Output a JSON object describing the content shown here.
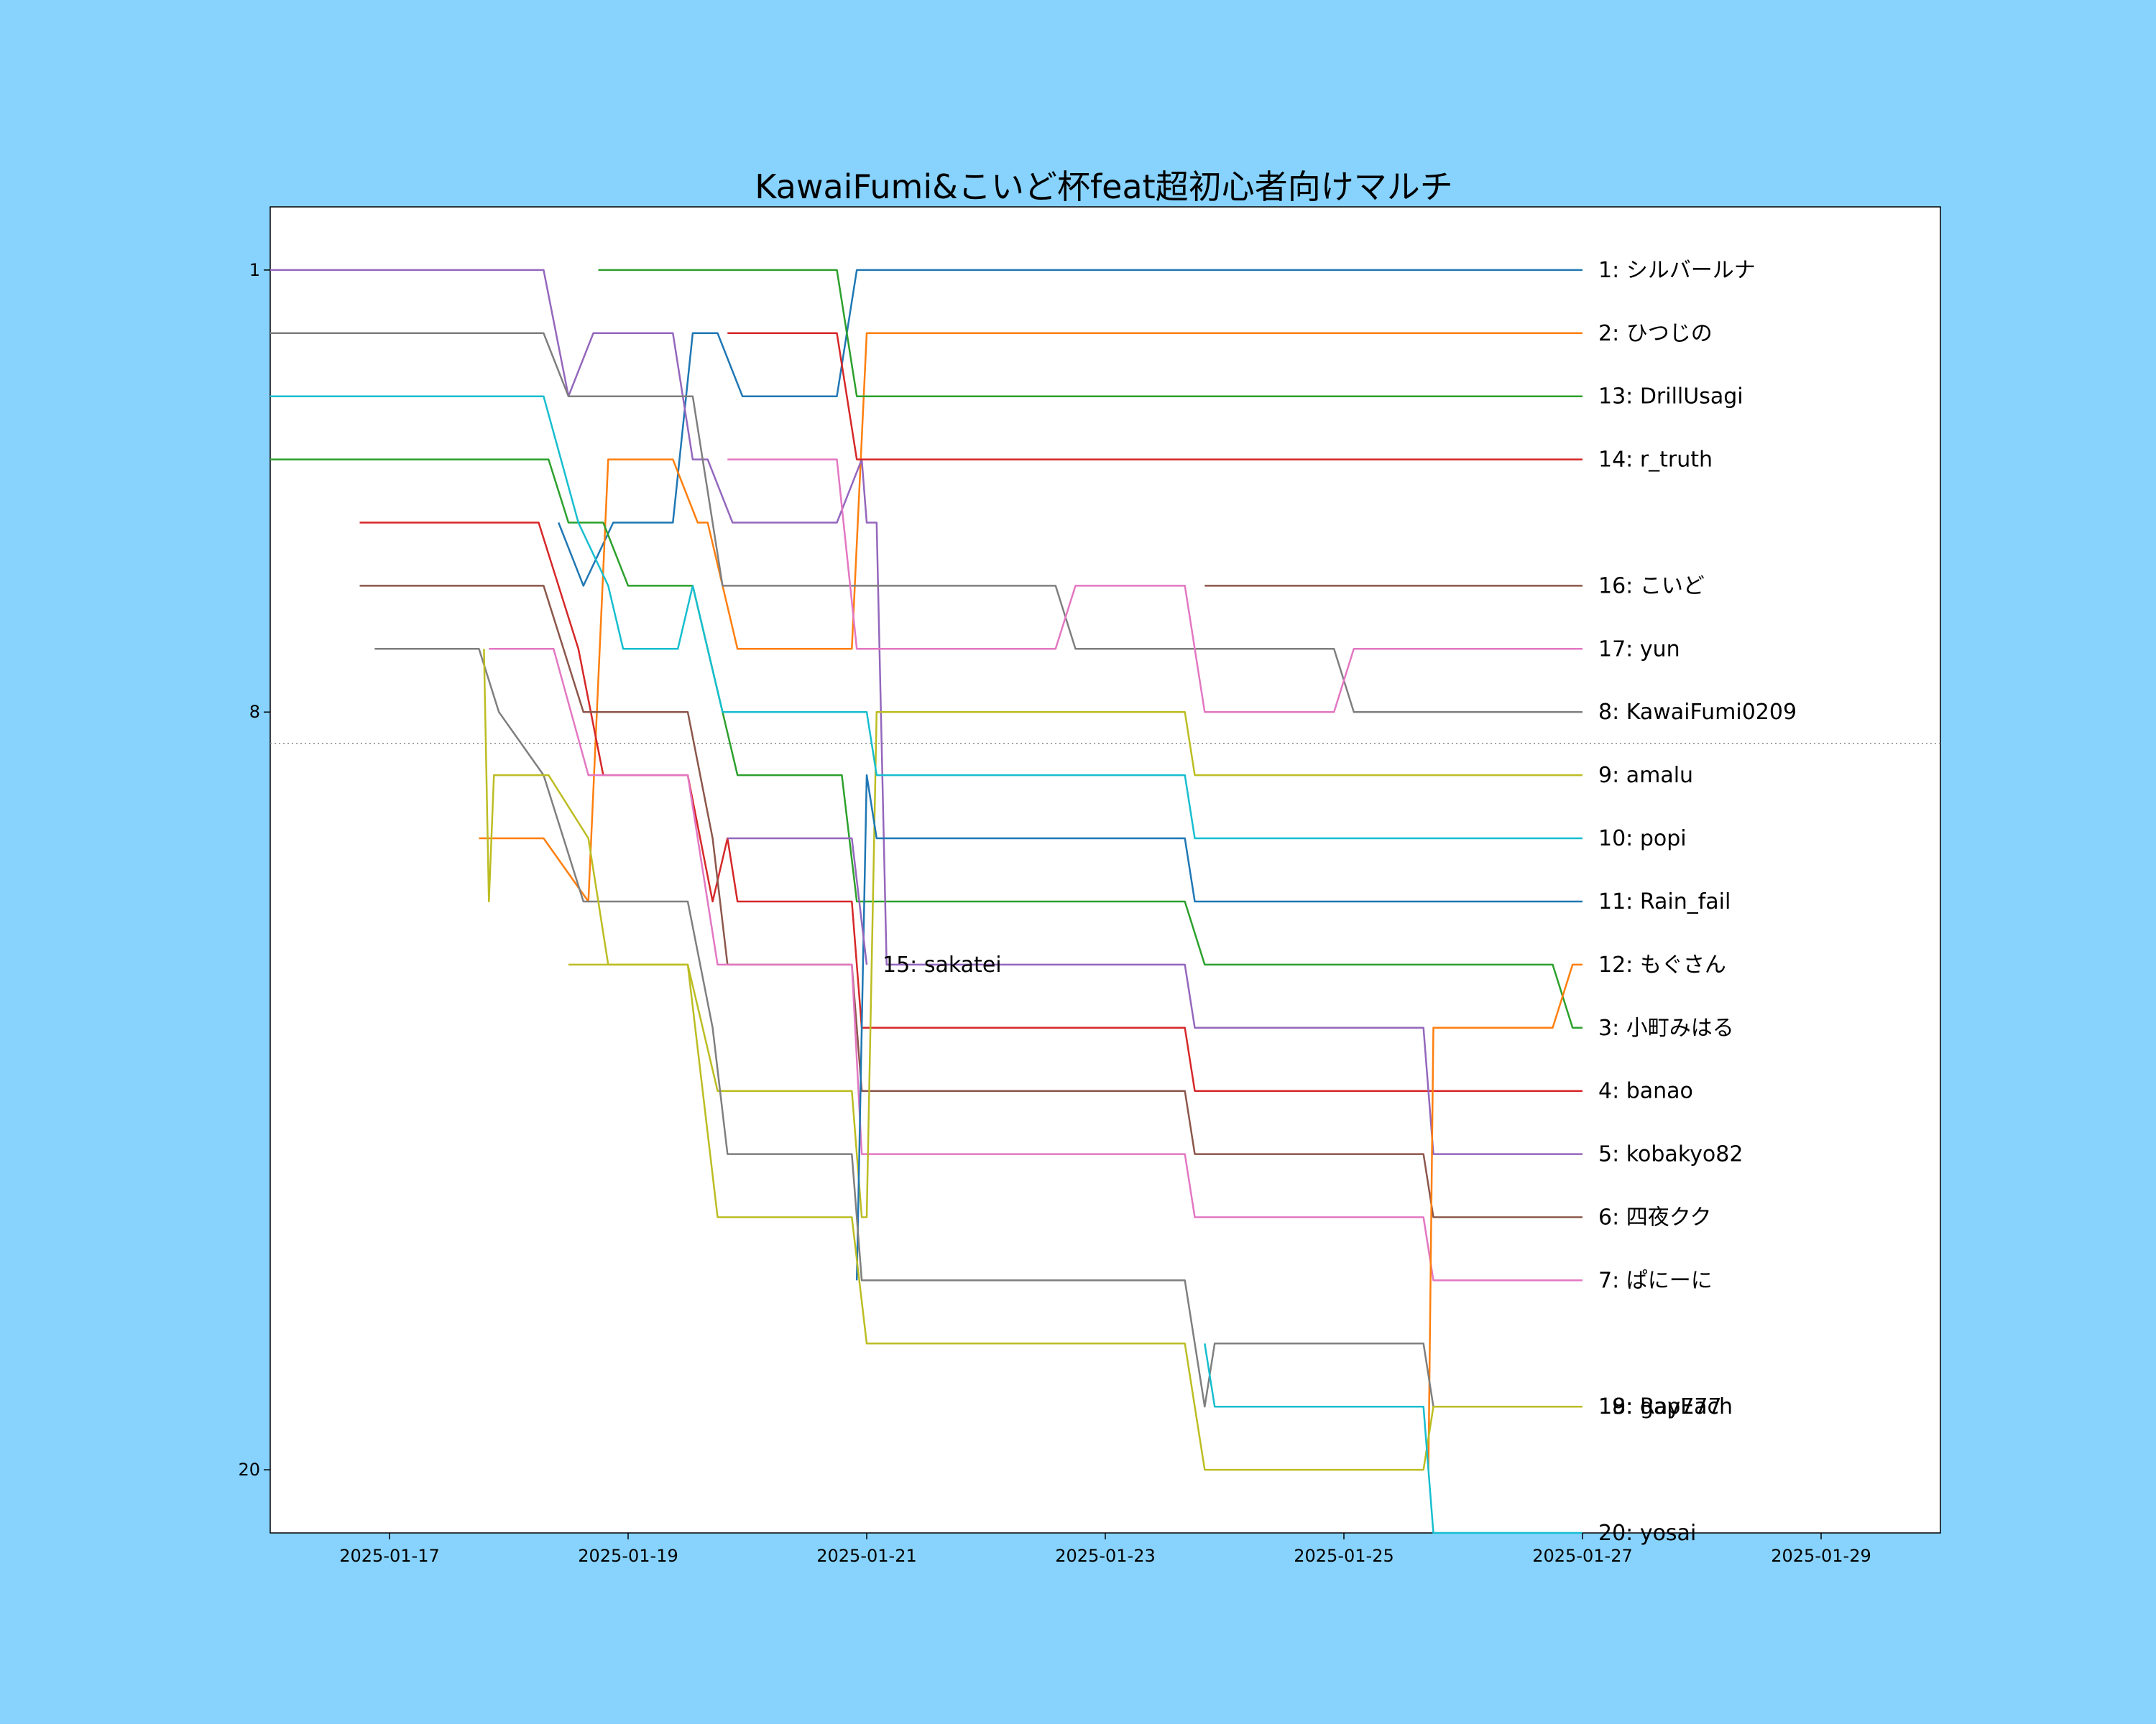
{
  "chart_data": {
    "type": "line",
    "title": "KawaiFumi&こいど杯feat超初心者向けマルチ",
    "xlabel": "",
    "ylabel": "",
    "x_axis": {
      "type": "date",
      "range": [
        "2025-01-16T00:00",
        "2025-01-30T00:00"
      ],
      "ticks": [
        "2025-01-17",
        "2025-01-19",
        "2025-01-21",
        "2025-01-23",
        "2025-01-25",
        "2025-01-27",
        "2025-01-29"
      ]
    },
    "y_axis": {
      "inverted": true,
      "range": [
        0,
        21
      ],
      "ticks": [
        1,
        8,
        20
      ]
    },
    "reference_line": {
      "y": 8.5,
      "style": "dotted",
      "color": "#888888"
    },
    "grid": false,
    "legend": "none",
    "series": [
      {
        "name": "1: シルバールナ",
        "color": "#1f77b4",
        "points": [
          [
            "2025-01-18T10:00",
            5
          ],
          [
            "2025-01-18T15:00",
            6
          ],
          [
            "2025-01-18T21:00",
            5
          ],
          [
            "2025-01-19T09:00",
            5
          ],
          [
            "2025-01-19T13:00",
            2
          ],
          [
            "2025-01-19T18:00",
            2
          ],
          [
            "2025-01-19T23:00",
            3
          ],
          [
            "2025-01-20T18:00",
            3
          ],
          [
            "2025-01-20T22:00",
            1
          ],
          [
            "2025-01-27T00:00",
            1
          ]
        ]
      },
      {
        "name": "2: ひつじの",
        "color": "#ff7f0e",
        "points": [
          [
            "2025-01-17T18:00",
            10
          ],
          [
            "2025-01-18T07:00",
            10
          ],
          [
            "2025-01-18T16:00",
            11
          ],
          [
            "2025-01-18T20:00",
            4
          ],
          [
            "2025-01-19T09:00",
            4
          ],
          [
            "2025-01-19T14:00",
            5
          ],
          [
            "2025-01-19T16:00",
            5
          ],
          [
            "2025-01-19T22:00",
            7
          ],
          [
            "2025-01-20T21:00",
            7
          ],
          [
            "2025-01-21T00:00",
            2
          ],
          [
            "2025-01-27T00:00",
            2
          ]
        ]
      },
      {
        "name": "3: 小町みはる",
        "color": "#2ca02c",
        "points": [
          [
            "2025-01-16T00:00",
            4
          ],
          [
            "2025-01-18T08:00",
            4
          ],
          [
            "2025-01-18T12:00",
            5
          ],
          [
            "2025-01-18T19:00",
            5
          ],
          [
            "2025-01-19T00:00",
            6
          ],
          [
            "2025-01-19T13:00",
            6
          ],
          [
            "2025-01-19T22:00",
            9
          ],
          [
            "2025-01-20T19:00",
            9
          ],
          [
            "2025-01-20T22:00",
            11
          ],
          [
            "2025-01-23T16:00",
            11
          ],
          [
            "2025-01-23T20:00",
            12
          ],
          [
            "2025-01-26T18:00",
            12
          ],
          [
            "2025-01-26T22:00",
            13
          ],
          [
            "2025-01-27T00:00",
            13
          ]
        ]
      },
      {
        "name": "4: banao",
        "color": "#d62728",
        "points": [
          [
            "2025-01-16T18:00",
            5
          ],
          [
            "2025-01-18T06:00",
            5
          ],
          [
            "2025-01-18T14:00",
            7
          ],
          [
            "2025-01-18T19:00",
            9
          ],
          [
            "2025-01-19T12:00",
            9
          ],
          [
            "2025-01-19T17:00",
            11
          ],
          [
            "2025-01-19T20:00",
            10
          ],
          [
            "2025-01-19T22:00",
            11
          ],
          [
            "2025-01-20T21:00",
            11
          ],
          [
            "2025-01-20T23:00",
            13
          ],
          [
            "2025-01-23T16:00",
            13
          ],
          [
            "2025-01-23T18:00",
            14
          ],
          [
            "2025-01-27T00:00",
            14
          ]
        ]
      },
      {
        "name": "5: kobakyo82",
        "color": "#9467bd",
        "points": [
          [
            "2025-01-16T00:00",
            1
          ],
          [
            "2025-01-18T07:00",
            1
          ],
          [
            "2025-01-18T12:00",
            3
          ],
          [
            "2025-01-18T17:00",
            2
          ],
          [
            "2025-01-19T09:00",
            2
          ],
          [
            "2025-01-19T13:00",
            4
          ],
          [
            "2025-01-19T16:00",
            4
          ],
          [
            "2025-01-19T21:00",
            5
          ],
          [
            "2025-01-20T18:00",
            5
          ],
          [
            "2025-01-20T23:00",
            4
          ],
          [
            "2025-01-21T00:00",
            5
          ],
          [
            "2025-01-21T02:00",
            5
          ],
          [
            "2025-01-21T04:00",
            12
          ],
          [
            "2025-01-23T16:00",
            12
          ],
          [
            "2025-01-23T18:00",
            13
          ],
          [
            "2025-01-25T16:00",
            13
          ],
          [
            "2025-01-25T18:00",
            15
          ],
          [
            "2025-01-27T00:00",
            15
          ]
        ]
      },
      {
        "name": "6: 四夜クク",
        "color": "#8c564b",
        "points": [
          [
            "2025-01-16T18:00",
            6
          ],
          [
            "2025-01-18T07:00",
            6
          ],
          [
            "2025-01-18T15:00",
            8
          ],
          [
            "2025-01-18T20:00",
            8
          ],
          [
            "2025-01-19T12:00",
            8
          ],
          [
            "2025-01-19T17:00",
            10
          ],
          [
            "2025-01-19T20:00",
            12
          ],
          [
            "2025-01-20T21:00",
            12
          ],
          [
            "2025-01-20T23:00",
            14
          ],
          [
            "2025-01-23T16:00",
            14
          ],
          [
            "2025-01-23T18:00",
            15
          ],
          [
            "2025-01-25T16:00",
            15
          ],
          [
            "2025-01-25T18:00",
            16
          ],
          [
            "2025-01-27T00:00",
            16
          ]
        ]
      },
      {
        "name": "7: ぱにーに",
        "color": "#e377c2",
        "points": [
          [
            "2025-01-17T20:00",
            7
          ],
          [
            "2025-01-18T09:00",
            7
          ],
          [
            "2025-01-18T16:00",
            9
          ],
          [
            "2025-01-19T12:00",
            9
          ],
          [
            "2025-01-19T18:00",
            12
          ],
          [
            "2025-01-20T21:00",
            12
          ],
          [
            "2025-01-20T23:00",
            15
          ],
          [
            "2025-01-23T16:00",
            15
          ],
          [
            "2025-01-23T18:00",
            16
          ],
          [
            "2025-01-25T16:00",
            16
          ],
          [
            "2025-01-25T18:00",
            17
          ],
          [
            "2025-01-27T00:00",
            17
          ]
        ]
      },
      {
        "name": "8: KawaiFumi0209",
        "color": "#7f7f7f",
        "points": [
          [
            "2025-01-16T00:00",
            2
          ],
          [
            "2025-01-18T07:00",
            2
          ],
          [
            "2025-01-18T12:00",
            3
          ],
          [
            "2025-01-19T13:00",
            3
          ],
          [
            "2025-01-19T19:00",
            6
          ],
          [
            "2025-01-22T14:00",
            6
          ],
          [
            "2025-01-22T18:00",
            7
          ],
          [
            "2025-01-24T22:00",
            7
          ],
          [
            "2025-01-25T02:00",
            8
          ],
          [
            "2025-01-27T00:00",
            8
          ]
        ]
      },
      {
        "name": "9: amalu",
        "color": "#bcbd22",
        "points": [
          [
            "2025-01-18T12:00",
            12
          ],
          [
            "2025-01-19T12:00",
            12
          ],
          [
            "2025-01-19T18:00",
            14
          ],
          [
            "2025-01-20T21:00",
            14
          ],
          [
            "2025-01-20T23:00",
            16
          ],
          [
            "2025-01-21T00:00",
            16
          ],
          [
            "2025-01-21T02:00",
            8
          ],
          [
            "2025-01-23T16:00",
            8
          ],
          [
            "2025-01-23T18:00",
            9
          ],
          [
            "2025-01-27T00:00",
            9
          ]
        ]
      },
      {
        "name": "10: popi",
        "color": "#17becf",
        "points": [
          [
            "2025-01-16T00:00",
            3
          ],
          [
            "2025-01-18T07:00",
            3
          ],
          [
            "2025-01-18T14:00",
            5
          ],
          [
            "2025-01-18T20:00",
            6
          ],
          [
            "2025-01-18T23:00",
            7
          ],
          [
            "2025-01-19T10:00",
            7
          ],
          [
            "2025-01-19T13:00",
            6
          ],
          [
            "2025-01-19T19:00",
            8
          ],
          [
            "2025-01-21T00:00",
            8
          ],
          [
            "2025-01-21T02:00",
            9
          ],
          [
            "2025-01-23T16:00",
            9
          ],
          [
            "2025-01-23T18:00",
            10
          ],
          [
            "2025-01-27T00:00",
            10
          ]
        ]
      },
      {
        "name": "11: Rain_fail",
        "color": "#1f77b4",
        "points": [
          [
            "2025-01-20T22:00",
            17
          ],
          [
            "2025-01-21T00:00",
            9
          ],
          [
            "2025-01-21T02:00",
            10
          ],
          [
            "2025-01-23T16:00",
            10
          ],
          [
            "2025-01-23T18:00",
            11
          ],
          [
            "2025-01-27T00:00",
            11
          ]
        ]
      },
      {
        "name": "12: もぐさん",
        "color": "#ff7f0e",
        "points": [
          [
            "2025-01-25T17:00",
            20
          ],
          [
            "2025-01-25T18:00",
            13
          ],
          [
            "2025-01-26T18:00",
            13
          ],
          [
            "2025-01-26T22:00",
            12
          ],
          [
            "2025-01-27T00:00",
            12
          ]
        ]
      },
      {
        "name": "13: DrillUsagi",
        "color": "#2ca02c",
        "points": [
          [
            "2025-01-18T18:00",
            1
          ],
          [
            "2025-01-20T18:00",
            1
          ],
          [
            "2025-01-20T22:00",
            3
          ],
          [
            "2025-01-27T00:00",
            3
          ]
        ]
      },
      {
        "name": "14: r_truth",
        "color": "#d62728",
        "points": [
          [
            "2025-01-19T20:00",
            2
          ],
          [
            "2025-01-20T18:00",
            2
          ],
          [
            "2025-01-20T22:00",
            4
          ],
          [
            "2025-01-27T00:00",
            4
          ]
        ]
      },
      {
        "name": "15: sakatei",
        "color": "#9467bd",
        "points": [
          [
            "2025-01-19T20:00",
            10
          ],
          [
            "2025-01-20T21:00",
            10
          ],
          [
            "2025-01-21T00:00",
            12
          ]
        ]
      },
      {
        "name": "16: こいど",
        "color": "#8c564b",
        "points": [
          [
            "2025-01-23T20:00",
            6
          ],
          [
            "2025-01-27T00:00",
            6
          ]
        ]
      },
      {
        "name": "17: yun",
        "color": "#e377c2",
        "points": [
          [
            "2025-01-19T20:00",
            4
          ],
          [
            "2025-01-20T18:00",
            4
          ],
          [
            "2025-01-20T22:00",
            7
          ],
          [
            "2025-01-22T14:00",
            7
          ],
          [
            "2025-01-22T18:00",
            6
          ],
          [
            "2025-01-23T16:00",
            6
          ],
          [
            "2025-01-23T20:00",
            8
          ],
          [
            "2025-01-24T22:00",
            8
          ],
          [
            "2025-01-25T02:00",
            7
          ],
          [
            "2025-01-27T00:00",
            7
          ]
        ]
      },
      {
        "name": "18: gap777",
        "color": "#7f7f7f",
        "points": [
          [
            "2025-01-16T21:00",
            7
          ],
          [
            "2025-01-17T18:00",
            7
          ],
          [
            "2025-01-17T22:00",
            8
          ],
          [
            "2025-01-18T07:00",
            9
          ],
          [
            "2025-01-18T15:00",
            11
          ],
          [
            "2025-01-19T12:00",
            11
          ],
          [
            "2025-01-19T17:00",
            13
          ],
          [
            "2025-01-19T20:00",
            15
          ],
          [
            "2025-01-20T21:00",
            15
          ],
          [
            "2025-01-20T23:00",
            17
          ],
          [
            "2025-01-23T16:00",
            17
          ],
          [
            "2025-01-23T20:00",
            19
          ],
          [
            "2025-01-23T22:00",
            18
          ],
          [
            "2025-01-25T16:00",
            18
          ],
          [
            "2025-01-25T18:00",
            19
          ],
          [
            "2025-01-27T00:00",
            19
          ]
        ]
      },
      {
        "name": "19: RayEach",
        "color": "#bcbd22",
        "points": [
          [
            "2025-01-17T19:00",
            7
          ],
          [
            "2025-01-17T20:00",
            11
          ],
          [
            "2025-01-17T21:00",
            9
          ],
          [
            "2025-01-18T08:00",
            9
          ],
          [
            "2025-01-18T16:00",
            10
          ],
          [
            "2025-01-18T20:00",
            12
          ],
          [
            "2025-01-19T12:00",
            12
          ],
          [
            "2025-01-19T18:00",
            16
          ],
          [
            "2025-01-20T21:00",
            16
          ],
          [
            "2025-01-21T00:00",
            18
          ],
          [
            "2025-01-23T16:00",
            18
          ],
          [
            "2025-01-23T20:00",
            20
          ],
          [
            "2025-01-25T16:00",
            20
          ],
          [
            "2025-01-25T18:00",
            19
          ],
          [
            "2025-01-27T00:00",
            19
          ]
        ]
      },
      {
        "name": "20: yosai",
        "color": "#17becf",
        "points": [
          [
            "2025-01-23T20:00",
            18
          ],
          [
            "2025-01-23T22:00",
            19
          ],
          [
            "2025-01-25T16:00",
            19
          ],
          [
            "2025-01-25T18:00",
            21
          ],
          [
            "2025-01-27T00:00",
            21
          ]
        ]
      }
    ]
  }
}
